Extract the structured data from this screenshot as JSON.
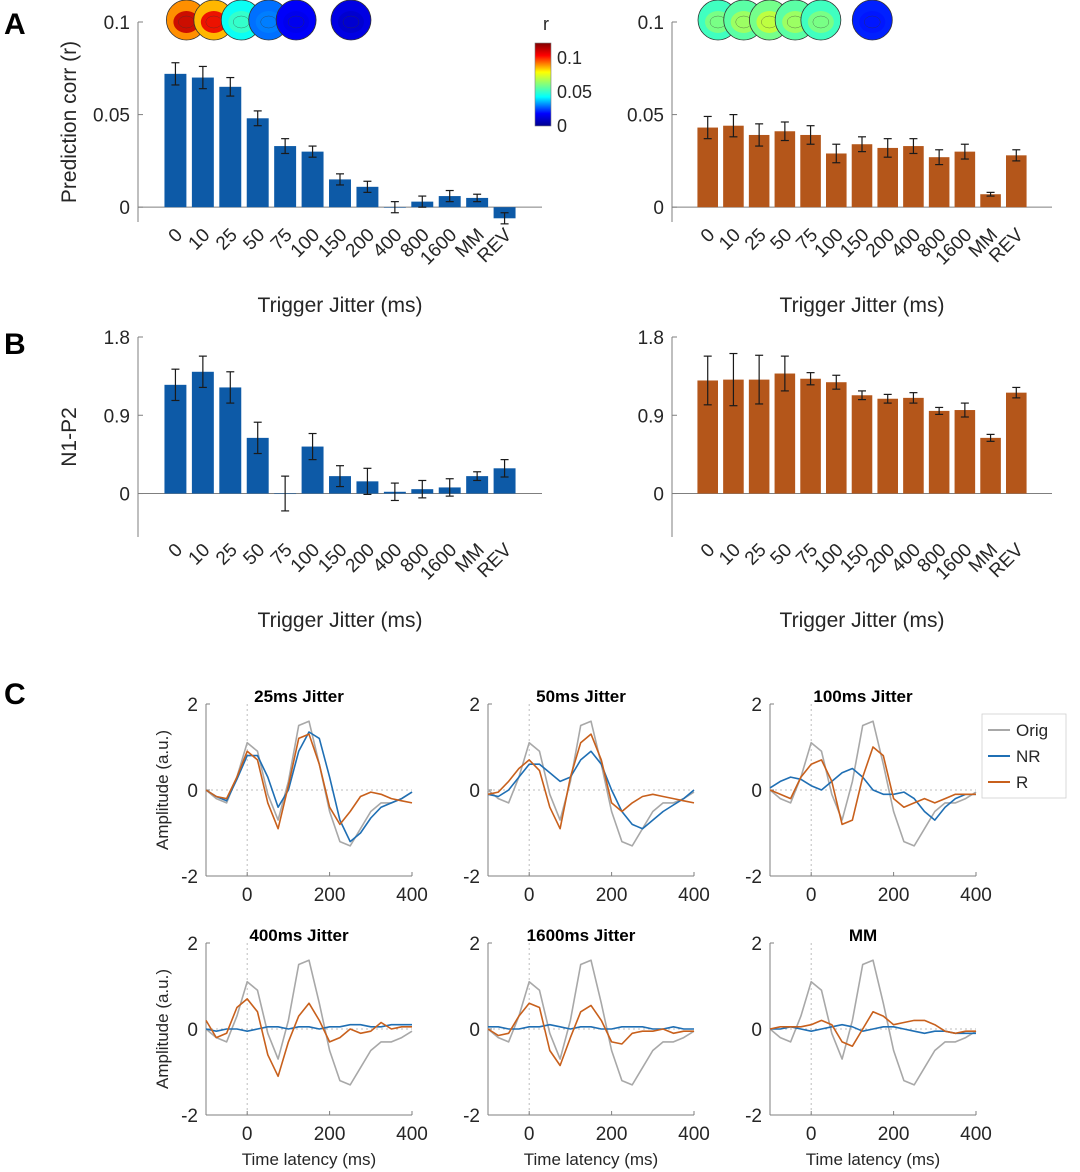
{
  "panels": {
    "A": "A",
    "B": "B",
    "C": "C"
  },
  "colors": {
    "nr": "#0d5aa7",
    "r": "#b4561a",
    "orig": "#a8a8a8",
    "nr_line": "#1f6fb4",
    "r_line": "#c8601c"
  },
  "colorbar": {
    "label": "r",
    "ticks": [
      "0.1",
      "0.05",
      "0"
    ]
  },
  "chart_data": [
    {
      "id": "A-left",
      "type": "bar",
      "color_key": "nr",
      "categories": [
        "0",
        "10",
        "25",
        "50",
        "75",
        "100",
        "150",
        "200",
        "400",
        "800",
        "1600",
        "MM",
        "REV"
      ],
      "values": [
        0.072,
        0.07,
        0.065,
        0.048,
        0.033,
        0.03,
        0.015,
        0.011,
        0.0,
        0.003,
        0.006,
        0.005,
        -0.006
      ],
      "errors": [
        0.006,
        0.006,
        0.005,
        0.004,
        0.004,
        0.003,
        0.003,
        0.003,
        0.003,
        0.003,
        0.003,
        0.002,
        0.003
      ],
      "ylim": [
        -0.008,
        0.1
      ],
      "yticks": [
        "0.1",
        "0.05",
        "0"
      ],
      "ytick_values": [
        0.1,
        0.05,
        0
      ],
      "ylabel": "Prediction corr (r)",
      "xlabel": "Trigger Jitter (ms)",
      "topo_values": [
        0.11,
        0.105,
        0.05,
        0.03,
        0.015,
        0.01
      ],
      "topo_cats": [
        0,
        1,
        2,
        3,
        4,
        6
      ]
    },
    {
      "id": "A-right",
      "type": "bar",
      "color_key": "r",
      "categories": [
        "0",
        "10",
        "25",
        "50",
        "75",
        "100",
        "150",
        "200",
        "400",
        "800",
        "1600",
        "MM",
        "REV"
      ],
      "values": [
        0.043,
        0.044,
        0.039,
        0.041,
        0.039,
        0.029,
        0.034,
        0.032,
        0.033,
        0.027,
        0.03,
        0.007,
        0.028
      ],
      "errors": [
        0.006,
        0.006,
        0.006,
        0.005,
        0.005,
        0.005,
        0.004,
        0.005,
        0.004,
        0.004,
        0.004,
        0.001,
        0.003
      ],
      "ylim": [
        -0.008,
        0.1
      ],
      "yticks": [
        "0.1",
        "0.05",
        "0"
      ],
      "ytick_values": [
        0.1,
        0.05,
        0
      ],
      "ylabel": "",
      "xlabel": "Trigger Jitter (ms)",
      "topo_values": [
        0.06,
        0.065,
        0.07,
        0.065,
        0.06,
        0.02
      ],
      "topo_cats": [
        0,
        1,
        2,
        3,
        4,
        6
      ]
    },
    {
      "id": "B-left",
      "type": "bar",
      "color_key": "nr",
      "categories": [
        "0",
        "10",
        "25",
        "50",
        "75",
        "100",
        "150",
        "200",
        "400",
        "800",
        "1600",
        "MM",
        "REV"
      ],
      "values": [
        1.25,
        1.4,
        1.22,
        0.64,
        0.0,
        0.54,
        0.2,
        0.14,
        0.02,
        0.05,
        0.07,
        0.2,
        0.29
      ],
      "errors": [
        0.18,
        0.18,
        0.18,
        0.18,
        0.2,
        0.15,
        0.12,
        0.15,
        0.1,
        0.1,
        0.1,
        0.05,
        0.1
      ],
      "ylim": [
        -0.5,
        1.8
      ],
      "yticks": [
        "1.8",
        "0.9",
        "0"
      ],
      "ytick_values": [
        1.8,
        0.9,
        0
      ],
      "ylabel": "N1-P2",
      "xlabel": "Trigger Jitter (ms)"
    },
    {
      "id": "B-right",
      "type": "bar",
      "color_key": "r",
      "categories": [
        "0",
        "10",
        "25",
        "50",
        "75",
        "100",
        "150",
        "200",
        "400",
        "800",
        "1600",
        "MM",
        "REV"
      ],
      "values": [
        1.3,
        1.31,
        1.31,
        1.38,
        1.32,
        1.28,
        1.13,
        1.09,
        1.1,
        0.95,
        0.96,
        0.64,
        1.16
      ],
      "errors": [
        0.28,
        0.3,
        0.28,
        0.2,
        0.07,
        0.08,
        0.05,
        0.05,
        0.06,
        0.04,
        0.08,
        0.04,
        0.06
      ],
      "ylim": [
        -0.5,
        1.8
      ],
      "yticks": [
        "1.8",
        "0.9",
        "0"
      ],
      "ytick_values": [
        1.8,
        0.9,
        0
      ],
      "ylabel": "",
      "xlabel": "Trigger Jitter (ms)"
    }
  ],
  "erp": {
    "ylabel": "Amplitude (a.u.)",
    "xlabel": "Time latency (ms)",
    "xlim": [
      -100,
      400
    ],
    "ylim": [
      -2,
      2
    ],
    "xticks": [
      0,
      200,
      400
    ],
    "yticks": [
      2,
      0,
      -2
    ],
    "legend": [
      "Orig",
      "NR",
      "R"
    ],
    "x": [
      -100,
      -75,
      -50,
      -25,
      0,
      25,
      50,
      75,
      100,
      125,
      150,
      175,
      200,
      225,
      250,
      275,
      300,
      325,
      350,
      375,
      400
    ],
    "orig": [
      0,
      -0.2,
      -0.3,
      0.3,
      1.1,
      0.9,
      -0.1,
      -0.7,
      0.2,
      1.5,
      1.6,
      0.6,
      -0.5,
      -1.2,
      -1.3,
      -0.9,
      -0.5,
      -0.3,
      -0.3,
      -0.2,
      -0.05
    ],
    "panels": [
      {
        "title": "25ms Jitter",
        "legend_shown": false,
        "nr": [
          0,
          -0.15,
          -0.25,
          0.25,
          0.8,
          0.8,
          0.3,
          -0.4,
          0.0,
          0.9,
          1.35,
          1.2,
          0.3,
          -0.7,
          -1.2,
          -1.0,
          -0.65,
          -0.4,
          -0.3,
          -0.2,
          -0.05
        ],
        "r": [
          0,
          -0.15,
          -0.2,
          0.3,
          0.9,
          0.7,
          -0.3,
          -0.9,
          0.1,
          1.2,
          1.3,
          0.6,
          -0.4,
          -0.8,
          -0.5,
          -0.15,
          -0.05,
          -0.1,
          -0.2,
          -0.25,
          -0.3
        ]
      },
      {
        "title": "50ms Jitter",
        "legend_shown": false,
        "nr": [
          -0.1,
          -0.15,
          0.0,
          0.3,
          0.6,
          0.6,
          0.4,
          0.2,
          0.3,
          0.7,
          0.9,
          0.6,
          0.0,
          -0.5,
          -0.8,
          -0.9,
          -0.7,
          -0.5,
          -0.35,
          -0.2,
          0.0
        ],
        "r": [
          -0.1,
          -0.05,
          0.2,
          0.5,
          0.7,
          0.45,
          -0.4,
          -0.9,
          0.3,
          1.1,
          1.3,
          0.7,
          -0.3,
          -0.5,
          -0.3,
          -0.15,
          -0.1,
          -0.15,
          -0.2,
          -0.25,
          -0.3
        ]
      },
      {
        "title": "100ms Jitter",
        "legend_shown": true,
        "nr": [
          0.05,
          0.2,
          0.3,
          0.25,
          0.1,
          0.0,
          0.2,
          0.4,
          0.5,
          0.3,
          0.0,
          -0.1,
          -0.1,
          -0.05,
          -0.2,
          -0.5,
          -0.7,
          -0.4,
          -0.2,
          -0.1,
          -0.1
        ],
        "r": [
          0,
          -0.1,
          -0.2,
          0.3,
          0.6,
          0.7,
          0.2,
          -0.8,
          -0.7,
          0.3,
          1.0,
          0.8,
          -0.2,
          -0.4,
          -0.3,
          -0.2,
          -0.3,
          -0.2,
          -0.1,
          -0.1,
          -0.1
        ]
      },
      {
        "title": "400ms Jitter",
        "legend_shown": false,
        "nr": [
          0,
          -0.05,
          0.0,
          0.0,
          -0.05,
          0.0,
          0.05,
          0.05,
          0.0,
          0.05,
          0.05,
          0.0,
          0.05,
          0.05,
          0.1,
          0.1,
          0.05,
          0.05,
          0.1,
          0.1,
          0.1
        ],
        "r": [
          0.2,
          -0.2,
          -0.1,
          0.5,
          0.7,
          0.4,
          -0.6,
          -1.1,
          -0.3,
          0.3,
          0.6,
          0.2,
          -0.3,
          -0.2,
          0.0,
          -0.1,
          -0.05,
          0.15,
          0.0,
          0.05,
          0.05
        ]
      },
      {
        "title": "1600ms Jitter",
        "legend_shown": false,
        "nr": [
          0.05,
          0.05,
          0.0,
          0.0,
          0.05,
          0.05,
          0.1,
          0.05,
          0.0,
          0.05,
          0.05,
          0.0,
          0.0,
          0.05,
          0.05,
          0.05,
          0.0,
          0.0,
          0.05,
          0.0,
          0.0
        ],
        "r": [
          0,
          -0.15,
          -0.1,
          0.3,
          0.6,
          0.5,
          -0.5,
          -0.85,
          -0.2,
          0.4,
          0.55,
          0.2,
          -0.3,
          -0.35,
          -0.1,
          -0.05,
          -0.05,
          0.0,
          -0.1,
          -0.05,
          -0.05
        ]
      },
      {
        "title": "MM",
        "legend_shown": false,
        "nr": [
          0,
          0.0,
          0.05,
          0.0,
          -0.05,
          0.0,
          0.05,
          0.1,
          0.05,
          -0.05,
          0.0,
          0.05,
          0.05,
          0.0,
          -0.05,
          -0.1,
          -0.05,
          -0.05,
          -0.1,
          -0.1,
          -0.1
        ],
        "r": [
          0,
          0.05,
          0.05,
          0.05,
          0.1,
          0.2,
          0.1,
          -0.3,
          -0.4,
          0.0,
          0.4,
          0.3,
          0.1,
          0.15,
          0.2,
          0.2,
          0.1,
          -0.05,
          -0.1,
          -0.05,
          -0.05
        ]
      }
    ]
  }
}
